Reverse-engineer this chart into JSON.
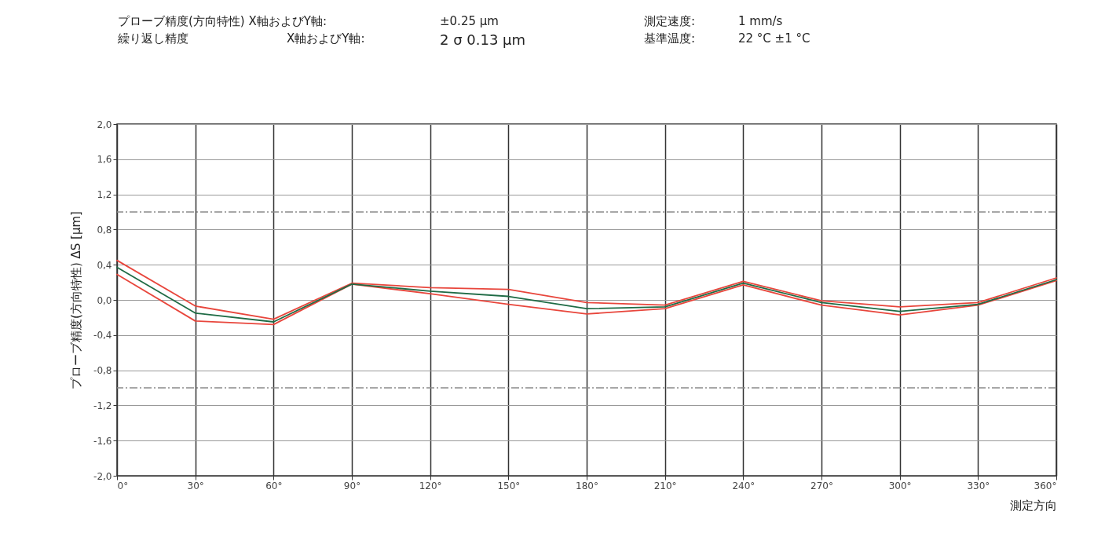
{
  "chart_data": {
    "type": "line",
    "annotations": [
      "プローブ精度(方向特性) X軸およびY軸:",
      "±0.25 µm",
      "測定速度:",
      "1 mm/s",
      "繰り返し精度",
      "X軸およびY軸:",
      "2 σ 0.13 µm",
      "基準温度:",
      "22 °C ±1 °C"
    ],
    "xlabel": "測定方向",
    "ylabel": "プローブ精度(方向特性) ΔS [µm]",
    "x": [
      0,
      30,
      60,
      90,
      120,
      150,
      180,
      210,
      240,
      270,
      300,
      330,
      360
    ],
    "series": [
      {
        "color": "#e8463c",
        "values": [
          0.45,
          -0.07,
          -0.22,
          0.19,
          0.14,
          0.12,
          -0.03,
          -0.06,
          0.21,
          -0.01,
          -0.08,
          -0.03,
          0.25
        ]
      },
      {
        "color": "#e8463c",
        "values": [
          0.29,
          -0.24,
          -0.28,
          0.18,
          0.07,
          -0.05,
          -0.16,
          -0.1,
          0.17,
          -0.06,
          -0.17,
          -0.06,
          0.22
        ]
      },
      {
        "color": "#1f6b45",
        "values": [
          0.37,
          -0.15,
          -0.25,
          0.18,
          0.1,
          0.04,
          -0.1,
          -0.08,
          0.19,
          -0.03,
          -0.13,
          -0.05,
          0.23
        ]
      }
    ],
    "xlim": [
      0,
      360
    ],
    "xticks": [
      {
        "value": 0,
        "label": "0°"
      },
      {
        "value": 30,
        "label": "30°"
      },
      {
        "value": 60,
        "label": "60°"
      },
      {
        "value": 90,
        "label": "90°"
      },
      {
        "value": 120,
        "label": "120°"
      },
      {
        "value": 150,
        "label": "150°"
      },
      {
        "value": 180,
        "label": "180°"
      },
      {
        "value": 210,
        "label": "210°"
      },
      {
        "value": 240,
        "label": "240°"
      },
      {
        "value": 270,
        "label": "270°"
      },
      {
        "value": 300,
        "label": "300°"
      },
      {
        "value": 330,
        "label": "330°"
      },
      {
        "value": 360,
        "label": "360°"
      }
    ],
    "ylim": [
      -2.0,
      2.0
    ],
    "yticks": [
      {
        "value": -2.0,
        "label": "-2,0"
      },
      {
        "value": -1.6,
        "label": "-1,6"
      },
      {
        "value": -1.2,
        "label": "-1,2"
      },
      {
        "value": -0.8,
        "label": "-0,8"
      },
      {
        "value": -0.4,
        "label": "-0,4"
      },
      {
        "value": 0,
        "label": "0,0"
      },
      {
        "value": 0.4,
        "label": "0,4"
      },
      {
        "value": 0.8,
        "label": "0,8"
      },
      {
        "value": 1.2,
        "label": "1,2"
      },
      {
        "value": 1.6,
        "label": "1,6"
      },
      {
        "value": 2.0,
        "label": "2,0"
      }
    ],
    "ref_lines": [
      {
        "axis": "y",
        "value": 1.0,
        "color": "#8a8a8a",
        "line_style": "dashed"
      },
      {
        "axis": "y",
        "value": -1.0,
        "color": "#8a8a8a",
        "line_style": "dashed"
      }
    ],
    "grid": true,
    "marker": "none",
    "line_style": "solid"
  }
}
